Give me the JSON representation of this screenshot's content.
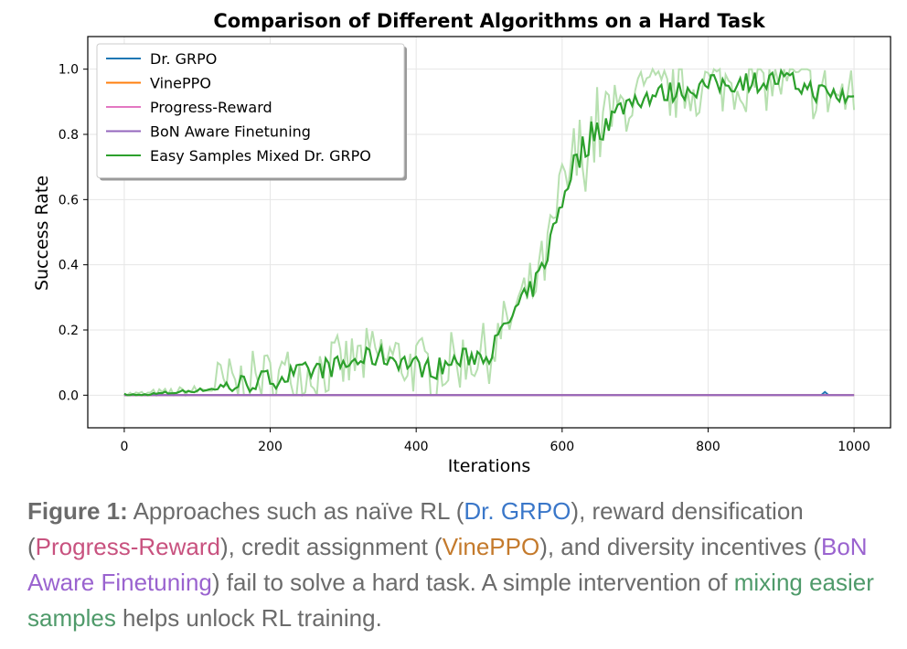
{
  "chart_data": {
    "type": "line",
    "title": "Comparison of Different Algorithms on a Hard Task",
    "xlabel": "Iterations",
    "ylabel": "Success Rate",
    "xlim": [
      -50,
      1050
    ],
    "ylim": [
      -0.1,
      1.1
    ],
    "xticks": [
      0,
      200,
      400,
      600,
      800,
      1000
    ],
    "yticks": [
      0.0,
      0.2,
      0.4,
      0.6,
      0.8,
      1.0
    ],
    "grid": true,
    "legend_position": "top-left",
    "colors": {
      "dr_grpo": "#1f77b4",
      "vineppo": "#ff7f0e",
      "progress_reward": "#e377c2",
      "bon": "#9467bd",
      "easy_mix": "#2ca02c",
      "easy_mix_raw": "#b7e0b0"
    },
    "series": [
      {
        "name": "Dr. GRPO",
        "color_key": "dr_grpo",
        "x": [
          0,
          955,
          960,
          965,
          1000
        ],
        "values": [
          0.0,
          0.0,
          0.01,
          0.0,
          0.0
        ]
      },
      {
        "name": "VinePPO",
        "color_key": "vineppo",
        "x": [
          0,
          1000
        ],
        "values": [
          0.0,
          0.0
        ]
      },
      {
        "name": "Progress-Reward",
        "color_key": "progress_reward",
        "x": [
          0,
          1000
        ],
        "values": [
          0.0,
          0.0
        ]
      },
      {
        "name": "BoN Aware Finetuning",
        "color_key": "bon",
        "x": [
          0,
          1000
        ],
        "values": [
          0.0,
          0.0
        ]
      },
      {
        "name": "Easy Samples Mixed Dr. GRPO",
        "color_key": "easy_mix",
        "x": [
          0,
          25,
          50,
          75,
          100,
          125,
          150,
          175,
          200,
          225,
          250,
          275,
          300,
          325,
          350,
          375,
          400,
          425,
          450,
          475,
          500,
          510,
          525,
          540,
          550,
          560,
          575,
          590,
          600,
          610,
          625,
          640,
          650,
          660,
          675,
          690,
          700,
          725,
          750,
          775,
          800,
          825,
          850,
          875,
          900,
          925,
          950,
          975,
          1000
        ],
        "values": [
          0.0,
          0.0,
          0.005,
          0.01,
          0.015,
          0.02,
          0.03,
          0.04,
          0.05,
          0.06,
          0.07,
          0.085,
          0.09,
          0.11,
          0.12,
          0.11,
          0.09,
          0.08,
          0.1,
          0.12,
          0.13,
          0.16,
          0.22,
          0.27,
          0.3,
          0.33,
          0.4,
          0.52,
          0.6,
          0.68,
          0.74,
          0.8,
          0.82,
          0.84,
          0.87,
          0.9,
          0.91,
          0.92,
          0.93,
          0.94,
          0.95,
          0.955,
          0.965,
          0.96,
          0.97,
          0.95,
          0.93,
          0.92,
          0.91
        ]
      }
    ]
  },
  "caption": {
    "figure_label": "Figure 1:",
    "part1": " Approaches such as naïve RL (",
    "dr_grpo": "Dr. GRPO",
    "part2": "), reward densification (",
    "progress_reward": "Progress-Reward",
    "part3": "), credit assignment (",
    "vineppo": "VinePPO",
    "part4": "), and diversity incentives (",
    "bon": "BoN Aware Finetuning",
    "part5": ") fail to solve a hard task. A simple intervention of ",
    "easy": "mixing easier samples",
    "part6": " helps unlock RL training."
  }
}
